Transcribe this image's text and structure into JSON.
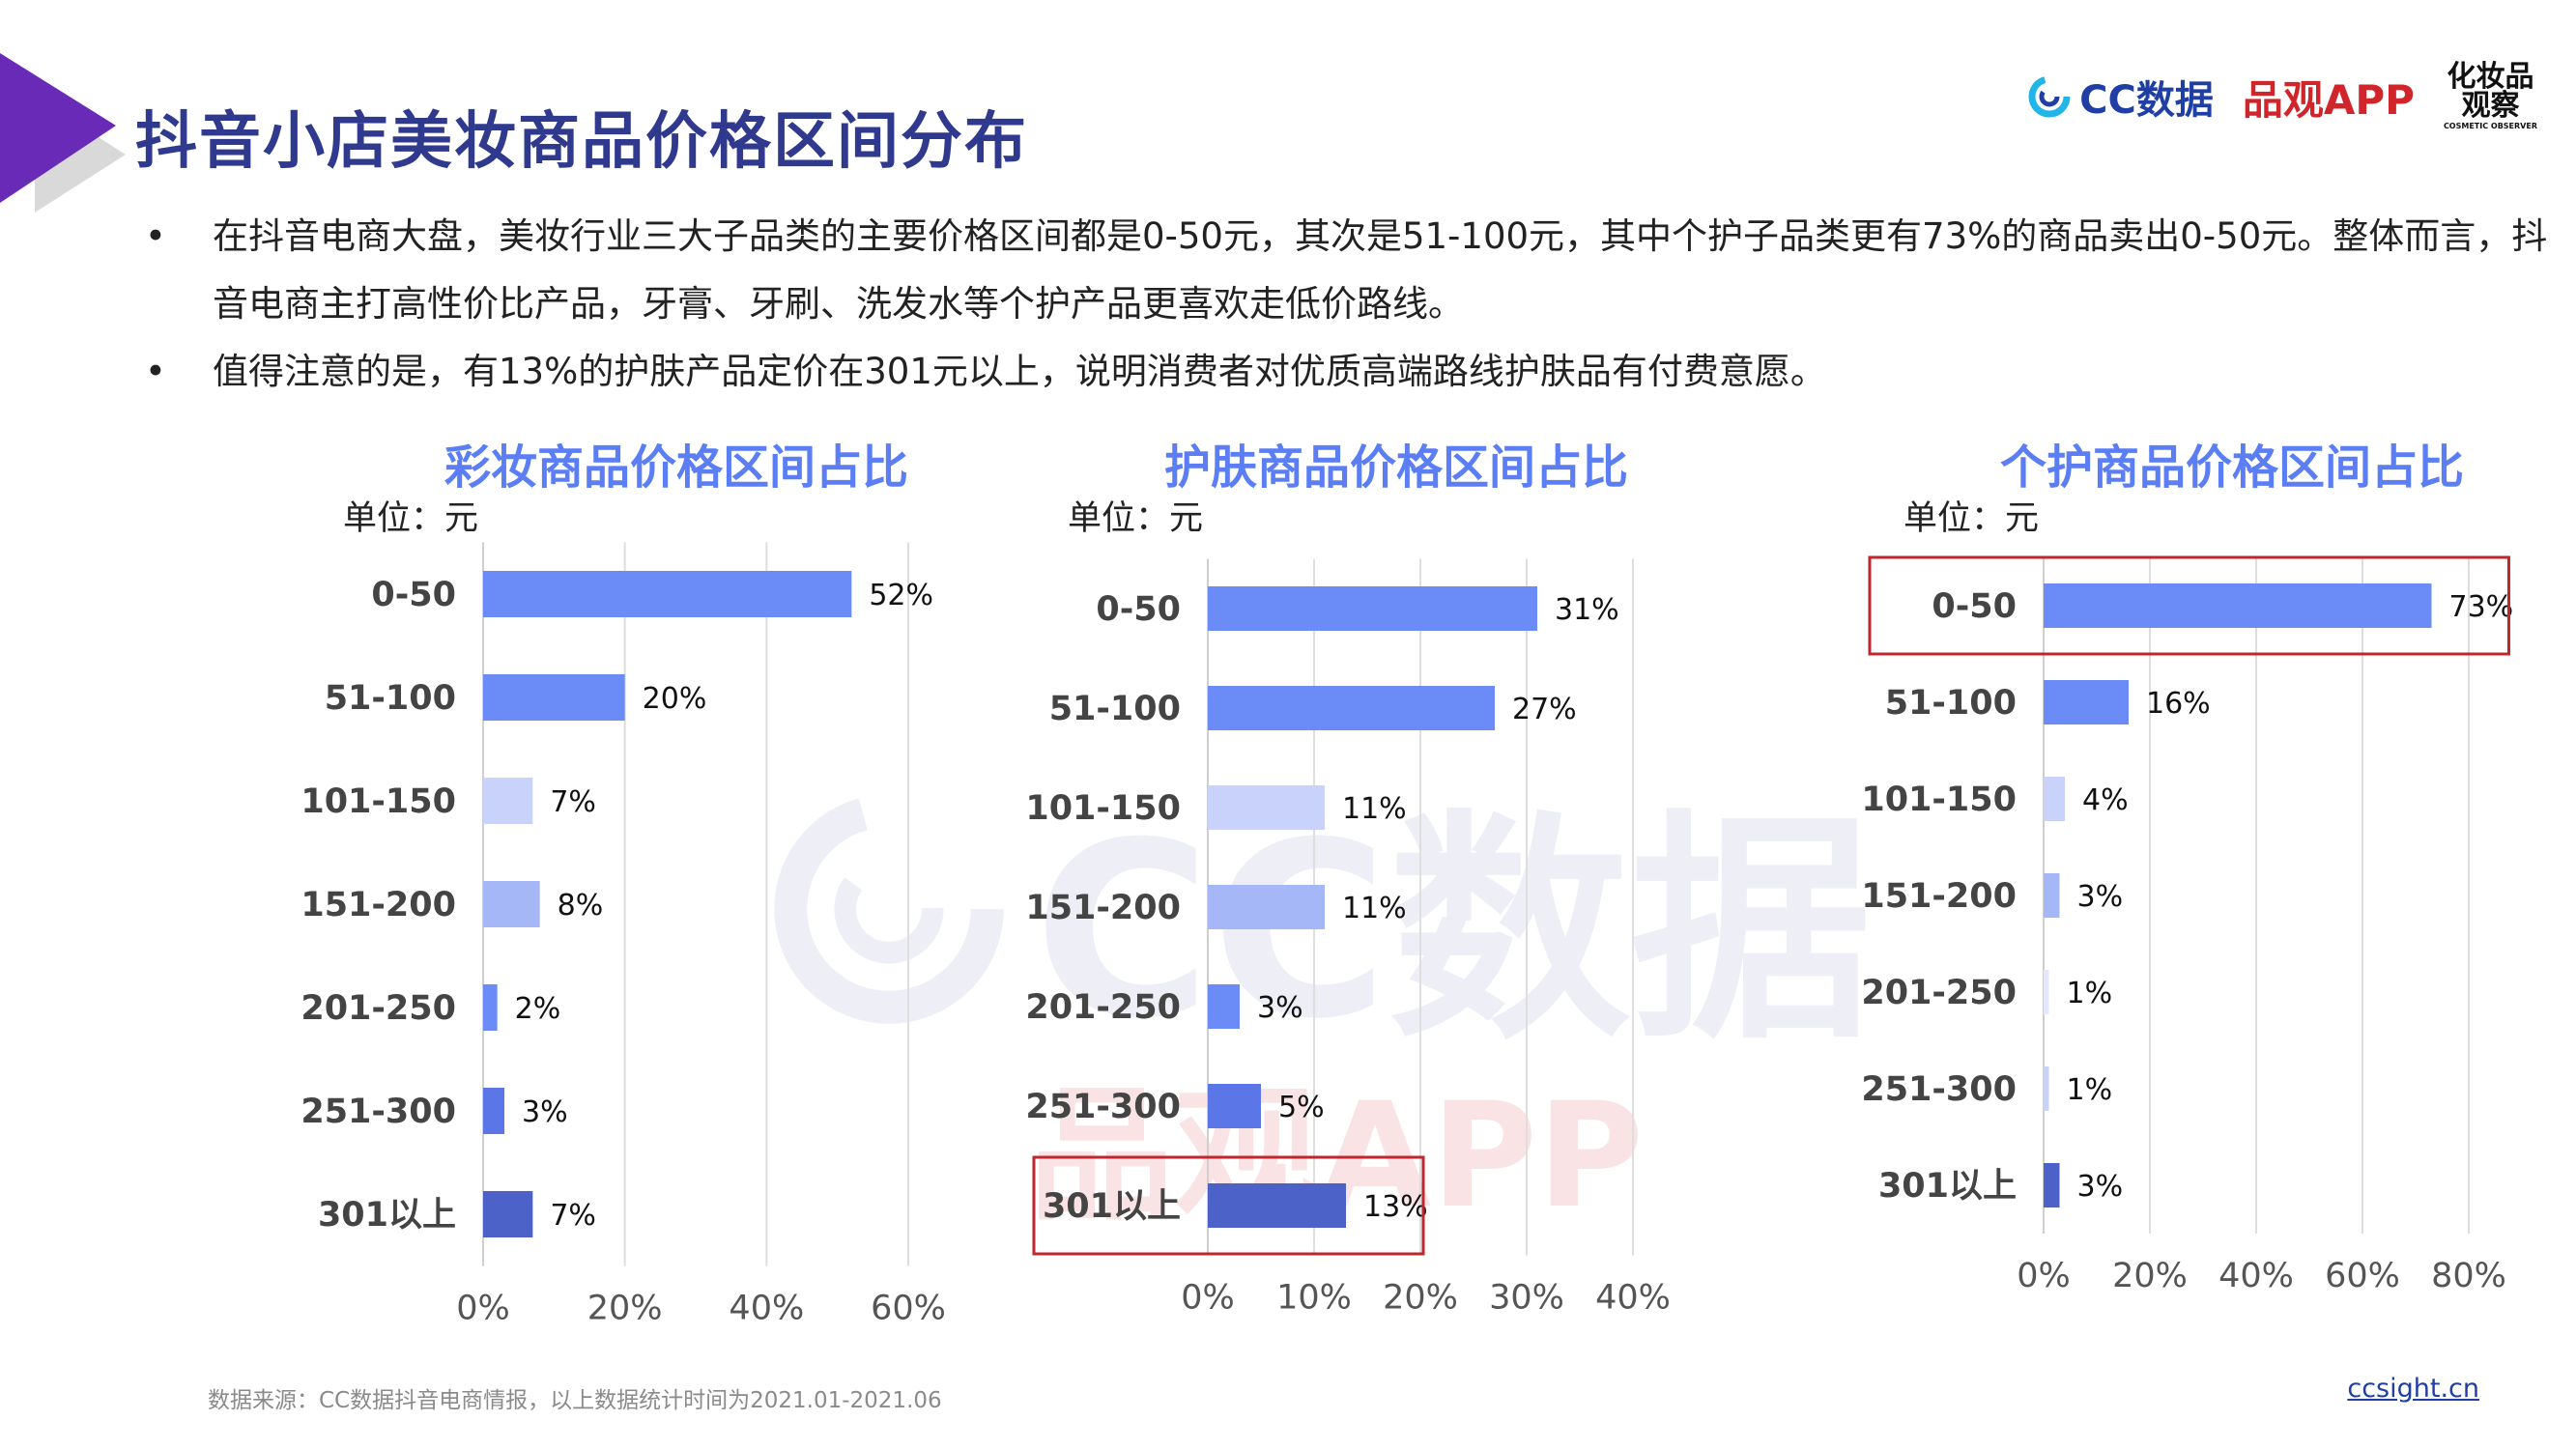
{
  "header": {
    "title": "抖音小店美妆商品价格区间分布",
    "logos": {
      "cc_label": "CC数据",
      "pinguan_label": "品观APP",
      "cosmetic_line1": "化妆品",
      "cosmetic_line2": "观察",
      "cosmetic_sub": "COSMETIC OBSERVER"
    }
  },
  "bullets": [
    "在抖音电商大盘，美妆行业三大子品类的主要价格区间都是0-50元，其次是51-100元，其中个护子品类更有73%的商品卖出0-50元。整体而言，抖音电商主打高性价比产品，牙膏、牙刷、洗发水等个护产品更喜欢走低价路线。",
    "值得注意的是，有13%的护肤产品定价在301元以上，说明消费者对优质高端路线护肤品有付费意愿。"
  ],
  "watermarks": {
    "cc": "CC数据",
    "pinguan": "品观APP"
  },
  "chart_data": [
    {
      "type": "bar",
      "orientation": "horizontal",
      "title": "彩妆商品价格区间占比",
      "unit": "单位：元",
      "categories": [
        "0-50",
        "51-100",
        "101-150",
        "151-200",
        "201-250",
        "251-300",
        "301以上"
      ],
      "values": [
        52,
        20,
        7,
        8,
        2,
        3,
        7
      ],
      "value_labels": [
        "52%",
        "20%",
        "7%",
        "8%",
        "2%",
        "3%",
        "7%"
      ],
      "xlim": [
        0,
        60
      ],
      "xticks": [
        "0%",
        "20%",
        "40%",
        "60%"
      ],
      "grid": true,
      "colors": [
        "#6b8cf7",
        "#6b8cf7",
        "#c8d2fb",
        "#a6b7f8",
        "#6b8cf7",
        "#5b76e6",
        "#4d62c9"
      ]
    },
    {
      "type": "bar",
      "orientation": "horizontal",
      "title": "护肤商品价格区间占比",
      "unit": "单位：元",
      "categories": [
        "0-50",
        "51-100",
        "101-150",
        "151-200",
        "201-250",
        "251-300",
        "301以上"
      ],
      "values": [
        31,
        27,
        11,
        11,
        3,
        5,
        13
      ],
      "value_labels": [
        "31%",
        "27%",
        "11%",
        "11%",
        "3%",
        "5%",
        "13%"
      ],
      "xlim": [
        0,
        40
      ],
      "xticks": [
        "0%",
        "10%",
        "20%",
        "30%",
        "40%"
      ],
      "grid": true,
      "highlight": "301以上",
      "colors": [
        "#6b8cf7",
        "#6b8cf7",
        "#c8d2fb",
        "#a6b7f8",
        "#6b8cf7",
        "#5b76e6",
        "#4d62c9"
      ]
    },
    {
      "type": "bar",
      "orientation": "horizontal",
      "title": "个护商品价格区间占比",
      "unit": "单位：元",
      "categories": [
        "0-50",
        "51-100",
        "101-150",
        "151-200",
        "201-250",
        "251-300",
        "301以上"
      ],
      "values": [
        73,
        16,
        4,
        3,
        1,
        1,
        3
      ],
      "value_labels": [
        "73%",
        "16%",
        "4%",
        "3%",
        "1%",
        "1%",
        "3%"
      ],
      "xlim": [
        0,
        80
      ],
      "xticks": [
        "0%",
        "20%",
        "40%",
        "60%",
        "80%"
      ],
      "grid": true,
      "highlight": "0-50",
      "colors": [
        "#6b8cf7",
        "#6b8cf7",
        "#c8d2fb",
        "#a6b7f8",
        "#e3e8fd",
        "#c8d2fb",
        "#4d62c9"
      ]
    }
  ],
  "footer": {
    "source": "数据来源：CC数据抖音电商情报，以上数据统计时间为2021.01-2021.06",
    "link": "ccsight.cn"
  }
}
